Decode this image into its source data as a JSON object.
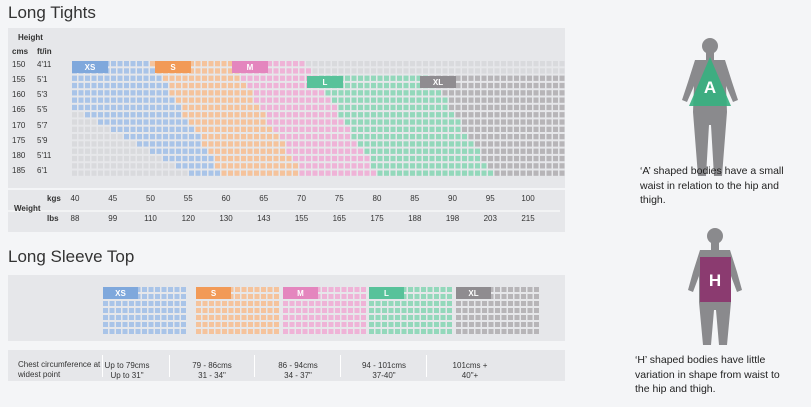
{
  "long_tights": {
    "title": "Long Tights",
    "height_label": "Height",
    "cms_label": "cms",
    "ftin_label": "ft/in",
    "heights": [
      {
        "cms": "150",
        "ftin": "4'11"
      },
      {
        "cms": "155",
        "ftin": "5'1"
      },
      {
        "cms": "160",
        "ftin": "5'3"
      },
      {
        "cms": "165",
        "ftin": "5'5"
      },
      {
        "cms": "170",
        "ftin": "5'7"
      },
      {
        "cms": "175",
        "ftin": "5'9"
      },
      {
        "cms": "180",
        "ftin": "5'11"
      },
      {
        "cms": "185",
        "ftin": "6'1"
      }
    ],
    "sizes": [
      "XS",
      "S",
      "M",
      "L",
      "XL"
    ],
    "weight_label": "Weight",
    "kgs_label": "kgs",
    "lbs_label": "lbs",
    "kgs": [
      "40",
      "45",
      "50",
      "55",
      "60",
      "65",
      "70",
      "75",
      "80",
      "85",
      "90",
      "95",
      "100"
    ],
    "lbs": [
      "88",
      "99",
      "110",
      "120",
      "130",
      "143",
      "155",
      "165",
      "175",
      "188",
      "198",
      "203",
      "215"
    ]
  },
  "long_sleeve_top": {
    "title": "Long Sleeve Top",
    "sizes": [
      "XS",
      "S",
      "M",
      "L",
      "XL"
    ],
    "chest_label": "Chest circumference at widest point",
    "chest": [
      {
        "cms": "Up to 79cms",
        "inches": "Up to 31\""
      },
      {
        "cms": "79 - 86cms",
        "inches": "31 - 34\""
      },
      {
        "cms": "86 - 94cms",
        "inches": "34 - 37\""
      },
      {
        "cms": "94 - 101cms",
        "inches": "37-40\""
      },
      {
        "cms": "101cms +",
        "inches": "40\"+"
      }
    ]
  },
  "body_types": [
    {
      "letter": "A",
      "text": "‘A’ shaped bodies have a small waist in relation to the hip and thigh."
    },
    {
      "letter": "H",
      "text": "‘H’ shaped bodies have little variation in shape from waist to the hip and thigh."
    }
  ]
}
